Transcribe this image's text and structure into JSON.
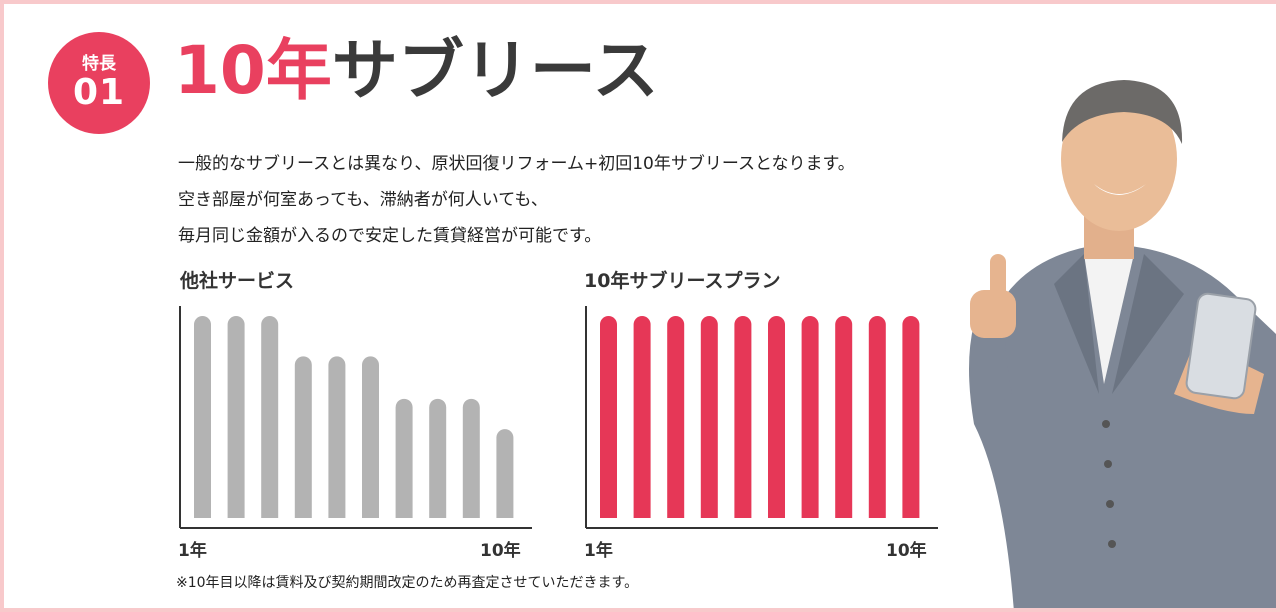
{
  "badge": {
    "label": "特長",
    "number": "01"
  },
  "title": {
    "accent": "10年",
    "rest": "サブリース"
  },
  "description": [
    "一般的なサブリースとは異なり、原状回復リフォーム+初回10年サブリースとなります。",
    "空き部屋が何室あっても、滞納者が何人いても、",
    "毎月同じ金額が入るので安定した賃貸経営が可能です。"
  ],
  "chart_data": [
    {
      "type": "bar",
      "title": "他社サービス",
      "x_start_label": "1年",
      "x_end_label": "10年",
      "categories": [
        "1",
        "2",
        "3",
        "4",
        "5",
        "6",
        "7",
        "8",
        "9",
        "10"
      ],
      "values": [
        100,
        100,
        100,
        80,
        80,
        80,
        59,
        59,
        59,
        44
      ],
      "color": "#b3b3b3"
    },
    {
      "type": "bar",
      "title": "10年サブリースプラン",
      "x_start_label": "1年",
      "x_end_label": "10年",
      "categories": [
        "1",
        "2",
        "3",
        "4",
        "5",
        "6",
        "7",
        "8",
        "9",
        "10"
      ],
      "values": [
        100,
        100,
        100,
        100,
        100,
        100,
        100,
        100,
        100,
        100
      ],
      "color": "#e63757"
    }
  ],
  "footnote": "※10年目以降は賃料及び契約期間改定のため再査定させていただきます。",
  "colors": {
    "accent": "#e9405f",
    "border": "#f8c9cb",
    "text": "#3a3a3a"
  },
  "photo": {
    "icon": "man-thumbs-up-with-phone-photo"
  }
}
